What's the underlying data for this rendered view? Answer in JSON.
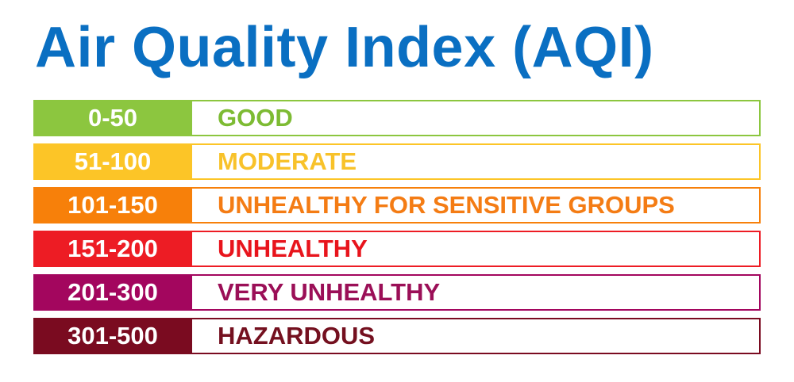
{
  "title": {
    "text": "Air Quality Index (AQI)",
    "color": "#0a6fc2"
  },
  "categories": [
    {
      "range": "0-50",
      "label": "GOOD",
      "color": "#8cc63f",
      "text_color": "#7dbb33"
    },
    {
      "range": "51-100",
      "label": "MODERATE",
      "color": "#fcc527",
      "text_color": "#f8c22a"
    },
    {
      "range": "101-150",
      "label": "UNHEALTHY FOR SENSITIVE GROUPS",
      "color": "#f7800a",
      "text_color": "#f47c14"
    },
    {
      "range": "151-200",
      "label": "UNHEALTHY",
      "color": "#ed1c24",
      "text_color": "#e8141c"
    },
    {
      "range": "201-300",
      "label": "VERY UNHEALTHY",
      "color": "#a3065e",
      "text_color": "#9b0f57"
    },
    {
      "range": "301-500",
      "label": "HAZARDOUS",
      "color": "#7a0b20",
      "text_color": "#74101f"
    }
  ]
}
